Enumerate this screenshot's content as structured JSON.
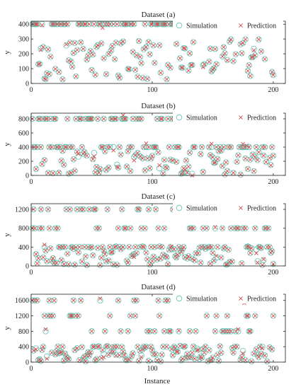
{
  "figure": {
    "xlabel": "Instance",
    "colors": {
      "simulation": "#5fc3b3",
      "prediction": "#d94a4a",
      "axis": "#222222"
    }
  },
  "chart_data": [
    {
      "type": "scatter",
      "title": "Dataset (a)",
      "xlabel": "",
      "ylabel": "y",
      "xlim": [
        0,
        210
      ],
      "ylim": [
        0,
        420
      ],
      "xticks": [
        0,
        100,
        200
      ],
      "yticks": [
        0,
        100,
        200,
        300,
        400
      ],
      "legend": "top-right",
      "grid": false,
      "series": [
        {
          "name": "Simulation",
          "marker": "circle"
        },
        {
          "name": "Prediction",
          "marker": "x"
        }
      ],
      "seed": 11,
      "levels": [
        400
      ],
      "level_fraction": 0.5,
      "low_range": [
        20,
        300
      ]
    },
    {
      "type": "scatter",
      "title": "Dataset (b)",
      "xlabel": "",
      "ylabel": "y",
      "xlim": [
        0,
        210
      ],
      "ylim": [
        0,
        880
      ],
      "xticks": [
        0,
        100,
        200
      ],
      "yticks": [
        0,
        200,
        400,
        600,
        800
      ],
      "legend": "top-right",
      "grid": false,
      "series": [
        {
          "name": "Simulation",
          "marker": "circle"
        },
        {
          "name": "Prediction",
          "marker": "x"
        }
      ],
      "seed": 23,
      "levels": [
        800,
        400
      ],
      "level_fraction": 0.55,
      "low_range": [
        10,
        360
      ]
    },
    {
      "type": "scatter",
      "title": "Dataset (c)",
      "xlabel": "",
      "ylabel": "y",
      "xlim": [
        0,
        210
      ],
      "ylim": [
        0,
        1320
      ],
      "xticks": [
        0,
        100,
        200
      ],
      "yticks": [
        0,
        400,
        800,
        1200
      ],
      "legend": "top-right",
      "grid": false,
      "series": [
        {
          "name": "Simulation",
          "marker": "circle"
        },
        {
          "name": "Prediction",
          "marker": "x"
        }
      ],
      "seed": 37,
      "levels": [
        1200,
        800,
        400
      ],
      "level_fraction": 0.5,
      "low_range": [
        10,
        420
      ]
    },
    {
      "type": "scatter",
      "title": "Dataset (d)",
      "xlabel": "Instance",
      "ylabel": "y",
      "xlim": [
        0,
        210
      ],
      "ylim": [
        0,
        1760
      ],
      "xticks": [
        0,
        100,
        200
      ],
      "yticks": [
        0,
        400,
        800,
        1200,
        1600
      ],
      "legend": "top-right",
      "grid": false,
      "series": [
        {
          "name": "Simulation",
          "marker": "circle"
        },
        {
          "name": "Prediction",
          "marker": "x"
        }
      ],
      "seed": 53,
      "levels": [
        1600,
        1200,
        800,
        400
      ],
      "level_fraction": 0.45,
      "low_range": [
        10,
        420
      ]
    }
  ]
}
